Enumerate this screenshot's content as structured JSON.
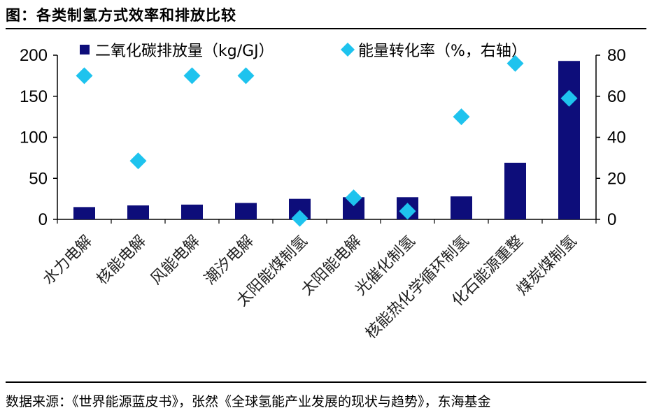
{
  "header": {
    "title": "图：各类制氢方式效率和排放比较"
  },
  "footer": {
    "source": "数据来源：《世界能源蓝皮书》，张然《全球氢能产业发展的现状与趋势》，东海基金"
  },
  "colors": {
    "bar": "#0d0d7a",
    "diamond": "#1ec3ee",
    "axis": "#000000"
  },
  "chart_data": {
    "type": "bar",
    "categories": [
      "水力电解",
      "核能电解",
      "风能电解",
      "潮汐电解",
      "太阳能煤制氢",
      "太阳能电解",
      "光催化制氢",
      "核能热化学循环制氢",
      "化石能源重整",
      "煤炭煤制氢"
    ],
    "series": [
      {
        "name": "二氧化碳排放量（kg/GJ）",
        "type": "bar",
        "axis": "left",
        "values": [
          15,
          17,
          18,
          20,
          25,
          27,
          27,
          28,
          69,
          193
        ]
      },
      {
        "name": "能量转化率（%，右轴）",
        "type": "scatter",
        "axis": "right",
        "values": [
          70,
          28.5,
          70,
          70,
          0.5,
          10.5,
          4,
          50,
          76,
          59
        ]
      }
    ],
    "y_left": {
      "min": 0,
      "max": 200,
      "ticks": [
        "0",
        "50",
        "100",
        "150",
        "200"
      ]
    },
    "y_right": {
      "min": 0,
      "max": 80,
      "ticks": [
        "0",
        "20",
        "40",
        "60",
        "80"
      ]
    },
    "legend_position": "top",
    "grid": false
  }
}
